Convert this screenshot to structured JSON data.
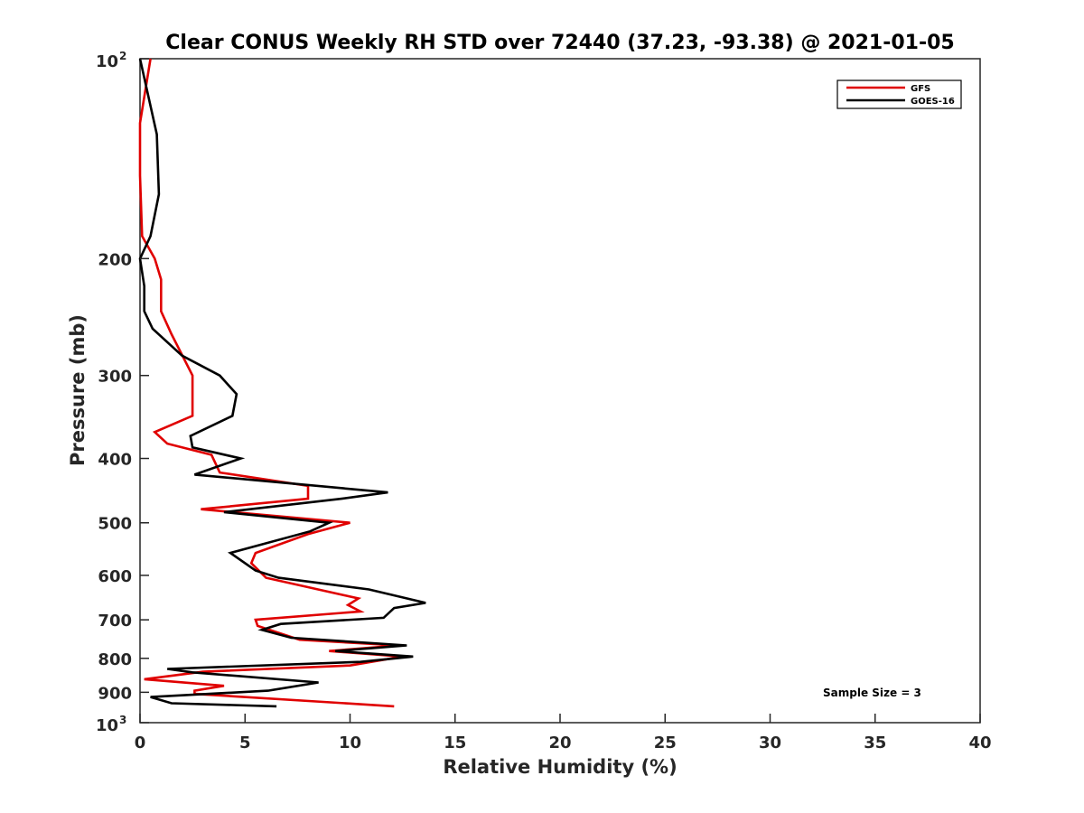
{
  "chart_data": {
    "type": "line",
    "title": "Clear CONUS Weekly RH STD over 72440 (37.23, -93.38) @ 2021-01-05",
    "xlabel": "Relative Humidity (%)",
    "ylabel": "Pressure (mb)",
    "xlim": [
      0,
      40
    ],
    "ylim": [
      1000,
      100
    ],
    "y_scale": "log",
    "y_reversed": true,
    "grid": false,
    "legend_position": "top-right",
    "x_ticks": [
      "0",
      "5",
      "10",
      "15",
      "20",
      "25",
      "30",
      "35",
      "40"
    ],
    "y_ticks": [
      {
        "value": 100,
        "base": "10",
        "exp": "2"
      },
      {
        "value": 200,
        "label": "200"
      },
      {
        "value": 300,
        "label": "300"
      },
      {
        "value": 400,
        "label": "400"
      },
      {
        "value": 500,
        "label": "500"
      },
      {
        "value": 600,
        "label": "600"
      },
      {
        "value": 700,
        "label": "700"
      },
      {
        "value": 800,
        "label": "800"
      },
      {
        "value": 900,
        "label": "900"
      },
      {
        "value": 1000,
        "base": "10",
        "exp": "3"
      }
    ],
    "annotation": "Sample Size = 3",
    "series": [
      {
        "name": "GFS",
        "color": "#e00000",
        "points": [
          [
            0.5,
            100
          ],
          [
            0.0,
            125
          ],
          [
            0.0,
            150
          ],
          [
            0.1,
            185
          ],
          [
            0.7,
            200
          ],
          [
            1.0,
            215
          ],
          [
            1.0,
            240
          ],
          [
            1.5,
            260
          ],
          [
            2.5,
            300
          ],
          [
            2.5,
            345
          ],
          [
            0.7,
            365
          ],
          [
            1.3,
            380
          ],
          [
            3.4,
            395
          ],
          [
            3.8,
            420
          ],
          [
            8.0,
            440
          ],
          [
            8.0,
            460
          ],
          [
            2.9,
            477
          ],
          [
            10.0,
            500
          ],
          [
            8.0,
            520
          ],
          [
            5.5,
            555
          ],
          [
            5.3,
            575
          ],
          [
            6.0,
            605
          ],
          [
            10.4,
            650
          ],
          [
            9.9,
            665
          ],
          [
            10.5,
            680
          ],
          [
            5.5,
            700
          ],
          [
            5.6,
            715
          ],
          [
            7.6,
            750
          ],
          [
            12.3,
            765
          ],
          [
            9.0,
            780
          ],
          [
            12.5,
            795
          ],
          [
            10.0,
            820
          ],
          [
            3.0,
            838
          ],
          [
            0.2,
            860
          ],
          [
            4.0,
            880
          ],
          [
            2.6,
            895
          ],
          [
            2.6,
            905
          ],
          [
            12.1,
            945
          ]
        ]
      },
      {
        "name": "GOES-16",
        "color": "#000000",
        "points": [
          [
            0.0,
            100
          ],
          [
            0.8,
            130
          ],
          [
            0.9,
            160
          ],
          [
            0.5,
            185
          ],
          [
            0.0,
            200
          ],
          [
            0.2,
            220
          ],
          [
            0.2,
            240
          ],
          [
            0.6,
            255
          ],
          [
            2.0,
            280
          ],
          [
            3.8,
            300
          ],
          [
            4.6,
            320
          ],
          [
            4.4,
            345
          ],
          [
            2.4,
            370
          ],
          [
            2.5,
            385
          ],
          [
            4.8,
            400
          ],
          [
            2.6,
            423
          ],
          [
            11.8,
            450
          ],
          [
            9.6,
            460
          ],
          [
            4.0,
            482
          ],
          [
            9.0,
            500
          ],
          [
            8.1,
            515
          ],
          [
            4.3,
            555
          ],
          [
            5.5,
            590
          ],
          [
            6.6,
            605
          ],
          [
            10.9,
            630
          ],
          [
            13.6,
            660
          ],
          [
            12.1,
            672
          ],
          [
            11.6,
            695
          ],
          [
            6.7,
            710
          ],
          [
            5.8,
            725
          ],
          [
            7.2,
            745
          ],
          [
            12.7,
            765
          ],
          [
            9.3,
            780
          ],
          [
            13.0,
            795
          ],
          [
            10.5,
            810
          ],
          [
            1.3,
            830
          ],
          [
            2.5,
            840
          ],
          [
            8.5,
            870
          ],
          [
            6.1,
            895
          ],
          [
            0.5,
            915
          ],
          [
            1.5,
            935
          ],
          [
            6.5,
            945
          ]
        ]
      }
    ]
  }
}
